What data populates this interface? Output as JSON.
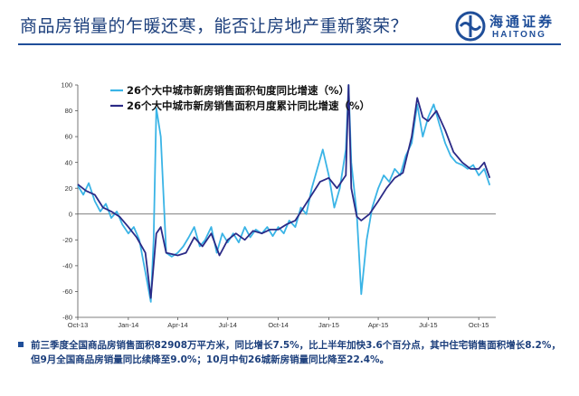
{
  "header": {
    "title": "商品房销量的乍暖还寒，能否让房地产重新繁荣？",
    "logo_cn": "海通证券",
    "logo_en": "HAITONG"
  },
  "colors": {
    "title": "#1c3f7c",
    "rule": "#1f4e99",
    "series_decade": "#3ab4e6",
    "series_monthly": "#2b2a86"
  },
  "chart_data": {
    "type": "line",
    "title": "",
    "xlabel": "",
    "ylabel": "",
    "ylim": [
      -80,
      100
    ],
    "yticks": [
      -80,
      -60,
      -40,
      -20,
      0,
      20,
      40,
      60,
      80,
      100
    ],
    "xlim": [
      "2013-10",
      "2015-11"
    ],
    "xticks": [
      {
        "label": "Oct-13",
        "x": "2013-10"
      },
      {
        "label": "Jan-14",
        "x": "2014-01"
      },
      {
        "label": "Apr-14",
        "x": "2014-04"
      },
      {
        "label": "Jul-14",
        "x": "2014-07"
      },
      {
        "label": "Oct-14",
        "x": "2014-10"
      },
      {
        "label": "Jan-15",
        "x": "2015-01"
      },
      {
        "label": "Apr-15",
        "x": "2015-04"
      },
      {
        "label": "Jul-15",
        "x": "2015-07"
      },
      {
        "label": "Oct-15",
        "x": "2015-10"
      }
    ],
    "grid": false,
    "legend_position": "top-left",
    "series": [
      {
        "name": "26个大中城市新房销售面积旬度同比增速（%）",
        "color": "#3ab4e6",
        "points": [
          [
            "2013-10-01",
            22
          ],
          [
            "2013-10-11",
            15
          ],
          [
            "2013-10-21",
            24
          ],
          [
            "2013-11-01",
            10
          ],
          [
            "2013-11-11",
            2
          ],
          [
            "2013-11-21",
            8
          ],
          [
            "2013-12-01",
            -3
          ],
          [
            "2013-12-11",
            2
          ],
          [
            "2013-12-21",
            -8
          ],
          [
            "2014-01-01",
            -15
          ],
          [
            "2014-01-11",
            -10
          ],
          [
            "2014-01-21",
            -20
          ],
          [
            "2014-02-01",
            -45
          ],
          [
            "2014-02-11",
            -68
          ],
          [
            "2014-02-16",
            -20
          ],
          [
            "2014-02-21",
            82
          ],
          [
            "2014-03-01",
            60
          ],
          [
            "2014-03-11",
            -30
          ],
          [
            "2014-03-21",
            -33
          ],
          [
            "2014-04-01",
            -30
          ],
          [
            "2014-04-11",
            -25
          ],
          [
            "2014-04-21",
            -18
          ],
          [
            "2014-05-01",
            -10
          ],
          [
            "2014-05-11",
            -25
          ],
          [
            "2014-05-21",
            -20
          ],
          [
            "2014-06-01",
            -10
          ],
          [
            "2014-06-11",
            -30
          ],
          [
            "2014-06-21",
            -15
          ],
          [
            "2014-07-01",
            -22
          ],
          [
            "2014-07-11",
            -15
          ],
          [
            "2014-07-21",
            -22
          ],
          [
            "2014-08-01",
            -10
          ],
          [
            "2014-08-11",
            -18
          ],
          [
            "2014-08-21",
            -12
          ],
          [
            "2014-09-01",
            -15
          ],
          [
            "2014-09-11",
            -10
          ],
          [
            "2014-09-21",
            -17
          ],
          [
            "2014-10-01",
            -10
          ],
          [
            "2014-10-11",
            -15
          ],
          [
            "2014-10-21",
            -5
          ],
          [
            "2014-11-01",
            -10
          ],
          [
            "2014-11-11",
            5
          ],
          [
            "2014-11-21",
            0
          ],
          [
            "2014-12-01",
            20
          ],
          [
            "2014-12-11",
            35
          ],
          [
            "2014-12-21",
            50
          ],
          [
            "2015-01-01",
            30
          ],
          [
            "2015-01-11",
            5
          ],
          [
            "2015-01-21",
            20
          ],
          [
            "2015-02-01",
            50
          ],
          [
            "2015-02-06",
            100
          ],
          [
            "2015-02-11",
            40
          ],
          [
            "2015-02-21",
            0
          ],
          [
            "2015-03-01",
            -62
          ],
          [
            "2015-03-11",
            -20
          ],
          [
            "2015-03-21",
            5
          ],
          [
            "2015-04-01",
            20
          ],
          [
            "2015-04-11",
            30
          ],
          [
            "2015-04-21",
            25
          ],
          [
            "2015-05-01",
            35
          ],
          [
            "2015-05-11",
            30
          ],
          [
            "2015-05-21",
            45
          ],
          [
            "2015-06-01",
            55
          ],
          [
            "2015-06-11",
            85
          ],
          [
            "2015-06-21",
            60
          ],
          [
            "2015-07-01",
            75
          ],
          [
            "2015-07-11",
            85
          ],
          [
            "2015-07-21",
            70
          ],
          [
            "2015-08-01",
            55
          ],
          [
            "2015-08-11",
            45
          ],
          [
            "2015-08-21",
            40
          ],
          [
            "2015-09-01",
            38
          ],
          [
            "2015-09-11",
            35
          ],
          [
            "2015-09-21",
            38
          ],
          [
            "2015-10-01",
            30
          ],
          [
            "2015-10-11",
            35
          ],
          [
            "2015-10-21",
            22.4
          ]
        ]
      },
      {
        "name": "26个大中城市新房销售面积月度累计同比增速（%）",
        "color": "#2b2a86",
        "points": [
          [
            "2013-10-01",
            23
          ],
          [
            "2013-10-16",
            18
          ],
          [
            "2013-11-01",
            15
          ],
          [
            "2013-11-16",
            5
          ],
          [
            "2013-12-01",
            2
          ],
          [
            "2013-12-16",
            -2
          ],
          [
            "2014-01-01",
            -10
          ],
          [
            "2014-01-16",
            -18
          ],
          [
            "2014-02-01",
            -30
          ],
          [
            "2014-02-11",
            -65
          ],
          [
            "2014-02-21",
            -15
          ],
          [
            "2014-03-01",
            -10
          ],
          [
            "2014-03-11",
            -30
          ],
          [
            "2014-04-01",
            -32
          ],
          [
            "2014-04-16",
            -30
          ],
          [
            "2014-05-01",
            -18
          ],
          [
            "2014-05-16",
            -25
          ],
          [
            "2014-06-01",
            -15
          ],
          [
            "2014-06-16",
            -32
          ],
          [
            "2014-07-01",
            -20
          ],
          [
            "2014-07-16",
            -15
          ],
          [
            "2014-08-01",
            -20
          ],
          [
            "2014-08-16",
            -13
          ],
          [
            "2014-09-01",
            -15
          ],
          [
            "2014-09-16",
            -12
          ],
          [
            "2014-10-01",
            -12
          ],
          [
            "2014-10-16",
            -8
          ],
          [
            "2014-11-01",
            -5
          ],
          [
            "2014-11-16",
            5
          ],
          [
            "2014-12-01",
            15
          ],
          [
            "2014-12-16",
            25
          ],
          [
            "2015-01-01",
            28
          ],
          [
            "2015-01-16",
            20
          ],
          [
            "2015-02-01",
            30
          ],
          [
            "2015-02-06",
            100
          ],
          [
            "2015-02-11",
            20
          ],
          [
            "2015-02-21",
            -2
          ],
          [
            "2015-03-01",
            -5
          ],
          [
            "2015-03-16",
            0
          ],
          [
            "2015-04-01",
            10
          ],
          [
            "2015-04-16",
            20
          ],
          [
            "2015-05-01",
            28
          ],
          [
            "2015-05-16",
            32
          ],
          [
            "2015-06-01",
            60
          ],
          [
            "2015-06-11",
            90
          ],
          [
            "2015-06-21",
            75
          ],
          [
            "2015-07-01",
            72
          ],
          [
            "2015-07-16",
            80
          ],
          [
            "2015-08-01",
            65
          ],
          [
            "2015-08-16",
            48
          ],
          [
            "2015-09-01",
            40
          ],
          [
            "2015-09-16",
            35
          ],
          [
            "2015-10-01",
            35
          ],
          [
            "2015-10-11",
            40
          ],
          [
            "2015-10-21",
            28
          ]
        ]
      }
    ]
  },
  "note": "前三季度全国商品房销售面积82908万平方米，同比增长7.5%，比上半年加快3.6个百分点，其中住宅销售面积增长8.2%，但9月全国商品房销量同比续降至9.0%；10月中旬26城新房销量同比降至22.4%。"
}
